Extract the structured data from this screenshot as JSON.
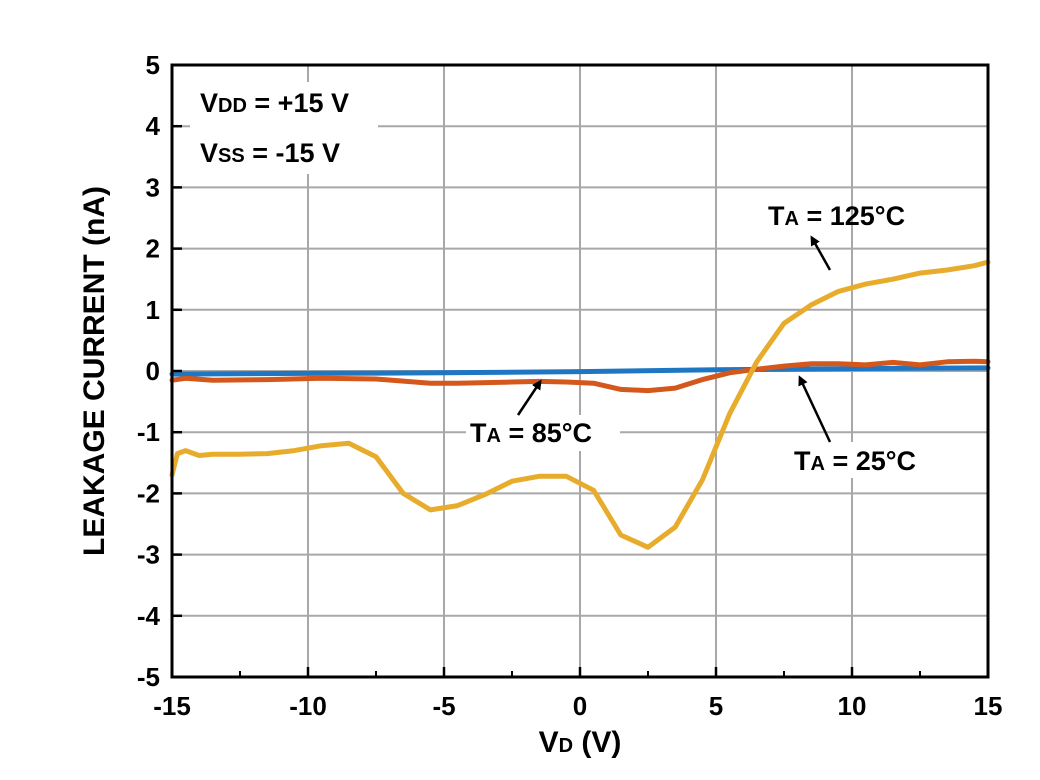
{
  "chart_data": {
    "type": "line",
    "xlabel": "VD (V)",
    "ylabel": "LEAKAGE CURRENT (nA)",
    "xlim": [
      -15,
      15
    ],
    "ylim": [
      -5,
      5
    ],
    "xticks": [
      "-15",
      "-10",
      "-5",
      "0",
      "5",
      "10",
      "15"
    ],
    "yticks": [
      "5",
      "4",
      "3",
      "2",
      "1",
      "0",
      "-1",
      "-2",
      "-3",
      "-4",
      "-5"
    ],
    "grid": true,
    "conditions": [
      "VDD = +15 V",
      "VSS = -15 V"
    ],
    "series": [
      {
        "name": "TA = 25°C",
        "color": "#1f77c4",
        "x": [
          -15,
          -10,
          -5,
          0,
          5,
          10,
          15
        ],
        "y": [
          -0.05,
          -0.04,
          -0.03,
          -0.01,
          0.02,
          0.04,
          0.05
        ]
      },
      {
        "name": "TA = 85°C",
        "color": "#d4581c",
        "x": [
          -15,
          -14.5,
          -13.5,
          -11.5,
          -9.5,
          -7.5,
          -5.5,
          -4.5,
          -2.5,
          -1.5,
          -0.5,
          0.5,
          1.5,
          2.5,
          3.5,
          4.5,
          5.5,
          6.5,
          7.5,
          8.5,
          9.5,
          10.5,
          11.5,
          12.5,
          13.5,
          14.5,
          15
        ],
        "y": [
          -0.15,
          -0.12,
          -0.15,
          -0.14,
          -0.12,
          -0.13,
          -0.2,
          -0.2,
          -0.18,
          -0.17,
          -0.18,
          -0.2,
          -0.3,
          -0.32,
          -0.28,
          -0.14,
          -0.03,
          0.03,
          0.08,
          0.12,
          0.12,
          0.1,
          0.14,
          0.1,
          0.15,
          0.16,
          0.15
        ]
      },
      {
        "name": "TA = 125°C",
        "color": "#e8ac2c",
        "x": [
          -15,
          -14.8,
          -14.5,
          -14,
          -13.5,
          -12.5,
          -11.5,
          -10.5,
          -9.5,
          -8.5,
          -7.5,
          -6.5,
          -5.5,
          -4.5,
          -3.5,
          -2.5,
          -1.5,
          -0.5,
          0.5,
          1.5,
          2.5,
          3.5,
          4.5,
          5.5,
          6.5,
          7.5,
          8.5,
          9.5,
          10.5,
          11.5,
          12.5,
          13.5,
          14.5,
          15
        ],
        "y": [
          -1.7,
          -1.35,
          -1.3,
          -1.38,
          -1.36,
          -1.36,
          -1.35,
          -1.3,
          -1.22,
          -1.18,
          -1.4,
          -2.0,
          -2.27,
          -2.2,
          -2.02,
          -1.8,
          -1.72,
          -1.72,
          -1.95,
          -2.68,
          -2.88,
          -2.55,
          -1.78,
          -0.7,
          0.15,
          0.78,
          1.08,
          1.3,
          1.42,
          1.5,
          1.6,
          1.65,
          1.72,
          1.78
        ]
      }
    ],
    "annotations": [
      {
        "label": "TA = 125°C",
        "series": "TA = 125°C"
      },
      {
        "label": "TA = 85°C",
        "series": "TA = 85°C"
      },
      {
        "label": "TA = 25°C",
        "series": "TA = 25°C"
      }
    ]
  }
}
